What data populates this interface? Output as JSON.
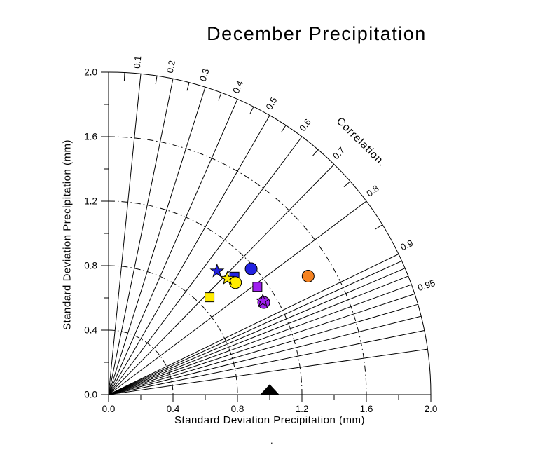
{
  "page": {
    "background": "#FFFFFF",
    "line_color": "#000000"
  },
  "chart_data": {
    "type": "taylor",
    "title": "December Precipitation",
    "xlabel": "Standard Deviation Precipitation (mm)",
    "ylabel": "Standard Deviation Precipitation (mm)",
    "correlation_label": "Correlation.",
    "stray_mark": ".",
    "std_axis": {
      "min": 0.0,
      "max": 2.0,
      "major_tick_labels": [
        "0.0",
        "0.4",
        "0.8",
        "1.2",
        "1.6",
        "2.0"
      ],
      "major_tick_values": [
        0.0,
        0.4,
        0.8,
        1.2,
        1.6,
        2.0
      ],
      "minor_tick_values": [
        0.2,
        0.6,
        1.0,
        1.4,
        1.8
      ],
      "arc_radii": [
        0.4,
        0.8,
        1.2,
        1.6
      ]
    },
    "correlation_axis": {
      "ray_values_major": [
        0.1,
        0.2,
        0.3,
        0.4,
        0.5,
        0.6,
        0.7,
        0.8,
        0.9
      ],
      "ray_values_fine": [
        0.91,
        0.92,
        0.93,
        0.94,
        0.95,
        0.96,
        0.97,
        0.98,
        0.99
      ],
      "arc_minor_tick_values": [
        0.05,
        0.15,
        0.25,
        0.35,
        0.45,
        0.55,
        0.65,
        0.75,
        0.85
      ],
      "labels": [
        {
          "value": 0.1,
          "text": "0.1"
        },
        {
          "value": 0.2,
          "text": "0.2"
        },
        {
          "value": 0.3,
          "text": "0.3"
        },
        {
          "value": 0.4,
          "text": "0.4"
        },
        {
          "value": 0.5,
          "text": "0.5"
        },
        {
          "value": 0.6,
          "text": "0.6"
        },
        {
          "value": 0.7,
          "text": "0.7"
        },
        {
          "value": 0.8,
          "text": "0.8"
        },
        {
          "value": 0.9,
          "text": "0.9"
        },
        {
          "value": 0.95,
          "text": "0.95"
        }
      ]
    },
    "points": [
      {
        "marker": "square",
        "color": "#2222E2",
        "std": 1.07,
        "corr": 0.73
      },
      {
        "marker": "circle",
        "color": "#FFEB00",
        "std": 1.05,
        "corr": 0.75
      },
      {
        "marker": "star",
        "color": "#FFEB00",
        "std": 1.03,
        "corr": 0.715
      },
      {
        "marker": "star",
        "color": "#2222E2",
        "std": 1.02,
        "corr": 0.66
      },
      {
        "marker": "circle",
        "color": "#2222E2",
        "std": 1.18,
        "corr": 0.75
      },
      {
        "marker": "square",
        "color": "#A020F0",
        "std": 1.14,
        "corr": 0.81
      },
      {
        "marker": "circle",
        "color": "#A020F0",
        "std": 1.12,
        "corr": 0.86
      },
      {
        "marker": "star",
        "color": "#A020F0",
        "std": 1.12,
        "corr": 0.855
      },
      {
        "marker": "square",
        "color": "#FFEB00",
        "std": 0.87,
        "corr": 0.72
      },
      {
        "marker": "circle",
        "color": "#F58220",
        "std": 1.44,
        "corr": 0.86
      }
    ],
    "reference": {
      "marker": "triangle",
      "color": "#000000",
      "std": 1.0,
      "corr": 1.0
    }
  }
}
